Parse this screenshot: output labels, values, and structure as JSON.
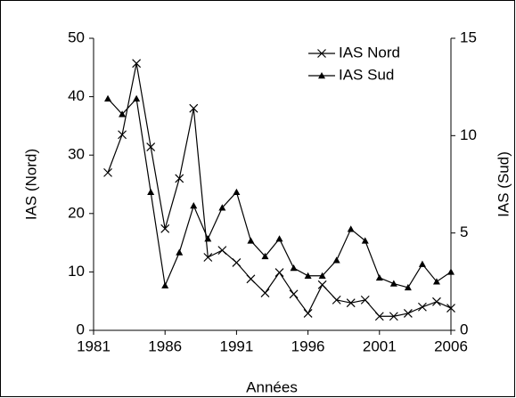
{
  "chart_data": {
    "type": "line",
    "x_label": "Années",
    "y_label": "IAS (Nord)",
    "y2_label": "IAS (Sud)",
    "x": [
      1982,
      1983,
      1984,
      1985,
      1986,
      1987,
      1988,
      1989,
      1990,
      1991,
      1992,
      1993,
      1994,
      1995,
      1996,
      1997,
      1998,
      1999,
      2000,
      2001,
      2002,
      2003,
      2004,
      2005,
      2006
    ],
    "xlim": [
      1981,
      2006
    ],
    "xticks": [
      1981,
      1986,
      1991,
      1996,
      2001,
      2006
    ],
    "ylim": [
      0,
      50
    ],
    "yticks": [
      0,
      10,
      20,
      30,
      40,
      50
    ],
    "y2lim": [
      0,
      15
    ],
    "y2ticks": [
      0,
      5,
      10,
      15
    ],
    "legend": "upper right",
    "series": [
      {
        "name": "IAS Nord",
        "color": "#000000",
        "marker": "x",
        "values": [
          27,
          33.5,
          45.7,
          31.4,
          17.4,
          26,
          38,
          12.5,
          13.7,
          11.6,
          8.8,
          6.4,
          9.9,
          6.2,
          2.9,
          7.8,
          5.2,
          4.7,
          5.2,
          2.4,
          2.4,
          2.9,
          4.0,
          4.9,
          3.8
        ]
      },
      {
        "name": "IAS Sud",
        "color": "#000000",
        "marker": "triangle",
        "axis": "y2",
        "values": [
          11.9,
          11.1,
          11.9,
          7.1,
          2.3,
          4.0,
          6.4,
          4.7,
          6.3,
          7.1,
          4.6,
          3.8,
          4.7,
          3.2,
          2.8,
          2.8,
          3.6,
          5.2,
          4.6,
          2.7,
          2.4,
          2.2,
          3.4,
          2.5,
          3.0
        ]
      }
    ]
  }
}
